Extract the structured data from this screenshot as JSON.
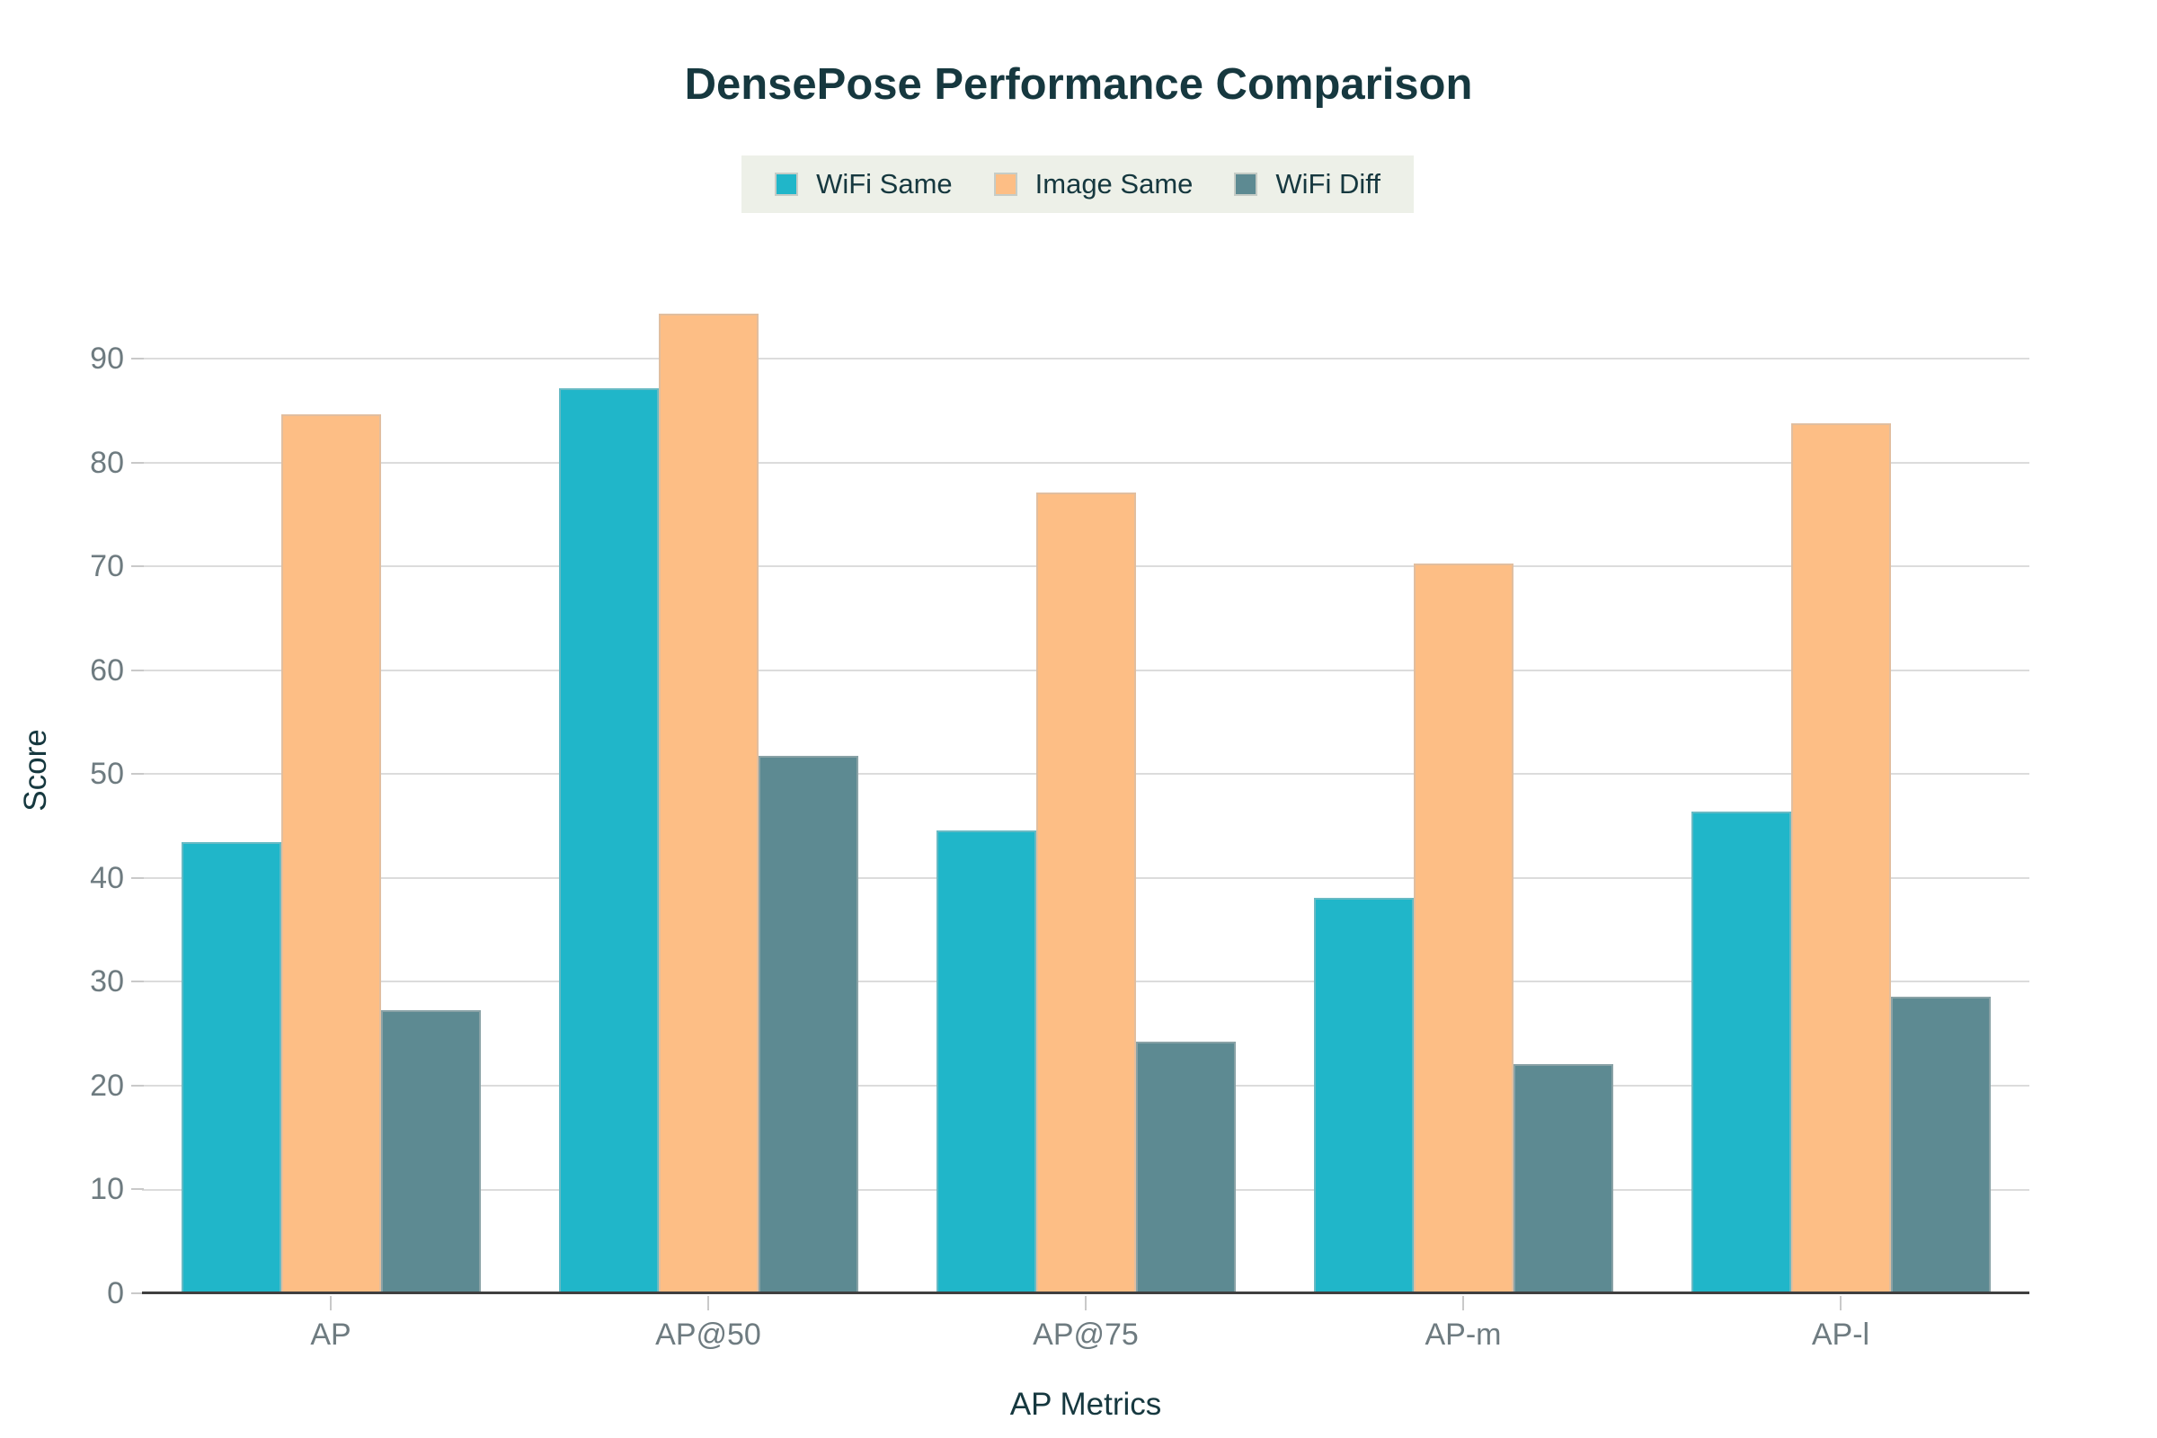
{
  "title": "DensePose Performance Comparison",
  "colors": {
    "background": "#ffffff",
    "legend_background": "#edf0e8",
    "dark_text": "#16383f",
    "tick_text": "#6e7b80",
    "gridline": "#dcdcdc",
    "axis_line": "#3f3f3f",
    "wifi_same": "#20b6c9",
    "image_same": "#fdbe85",
    "wifi_diff": "#5d8a92"
  },
  "chart_data": {
    "type": "bar",
    "title": "DensePose Performance Comparison",
    "xlabel": "AP Metrics",
    "ylabel": "Score",
    "categories": [
      "AP",
      "AP@50",
      "AP@75",
      "AP-m",
      "AP-l"
    ],
    "series": [
      {
        "name": "WiFi Same",
        "color": "#20b6c9",
        "values": [
          43.5,
          87.2,
          44.6,
          38.1,
          46.4
        ]
      },
      {
        "name": "Image Same",
        "color": "#fdbe85",
        "values": [
          84.7,
          94.4,
          77.1,
          70.3,
          83.8
        ]
      },
      {
        "name": "WiFi Diff",
        "color": "#5d8a92",
        "values": [
          27.3,
          51.8,
          24.2,
          22.1,
          28.6
        ]
      }
    ],
    "ylim": [
      0,
      100
    ],
    "yticks": [
      0,
      10,
      20,
      30,
      40,
      50,
      60,
      70,
      80,
      90
    ],
    "grid": true,
    "legend_position": "top-center"
  }
}
